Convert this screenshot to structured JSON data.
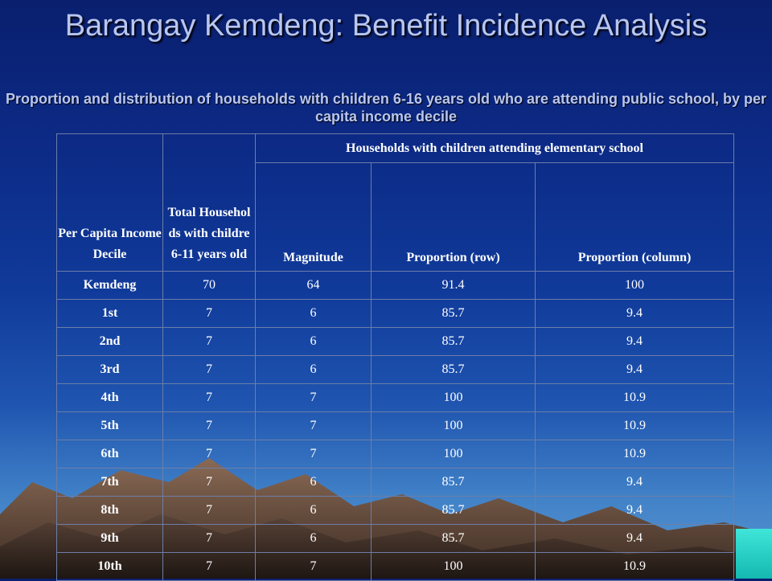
{
  "slide": {
    "title": "Barangay Kemdeng: Benefit Incidence Analysis",
    "subtitle": "Proportion and distribution of households with children 6-16 years old who are attending public school, by per capita income decile"
  },
  "table": {
    "headers": {
      "decile": "Per Capita Income Decile",
      "total": "Total Househol ds with childre 6-11 years old",
      "group": "Households with children attending elementary school",
      "magnitude": "Magnitude",
      "prop_row": "Proportion (row)",
      "prop_col": "Proportion (column)"
    },
    "rows": [
      {
        "decile": "Kemdeng",
        "total": "70",
        "magnitude": "64",
        "prop_row": "91.4",
        "prop_col": "100"
      },
      {
        "decile": "1st",
        "total": "7",
        "magnitude": "6",
        "prop_row": "85.7",
        "prop_col": "9.4"
      },
      {
        "decile": "2nd",
        "total": "7",
        "magnitude": "6",
        "prop_row": "85.7",
        "prop_col": "9.4"
      },
      {
        "decile": "3rd",
        "total": "7",
        "magnitude": "6",
        "prop_row": "85.7",
        "prop_col": "9.4"
      },
      {
        "decile": "4th",
        "total": "7",
        "magnitude": "7",
        "prop_row": "100",
        "prop_col": "10.9"
      },
      {
        "decile": "5th",
        "total": "7",
        "magnitude": "7",
        "prop_row": "100",
        "prop_col": "10.9"
      },
      {
        "decile": "6th",
        "total": "7",
        "magnitude": "7",
        "prop_row": "100",
        "prop_col": "10.9"
      },
      {
        "decile": "7th",
        "total": "7",
        "magnitude": "6",
        "prop_row": "85.7",
        "prop_col": "9.4"
      },
      {
        "decile": "8th",
        "total": "7",
        "magnitude": "6",
        "prop_row": "85.7",
        "prop_col": "9.4"
      },
      {
        "decile": "9th",
        "total": "7",
        "magnitude": "6",
        "prop_row": "85.7",
        "prop_col": "9.4"
      },
      {
        "decile": "10th",
        "total": "7",
        "magnitude": "7",
        "prop_row": "100",
        "prop_col": "10.9"
      }
    ]
  }
}
